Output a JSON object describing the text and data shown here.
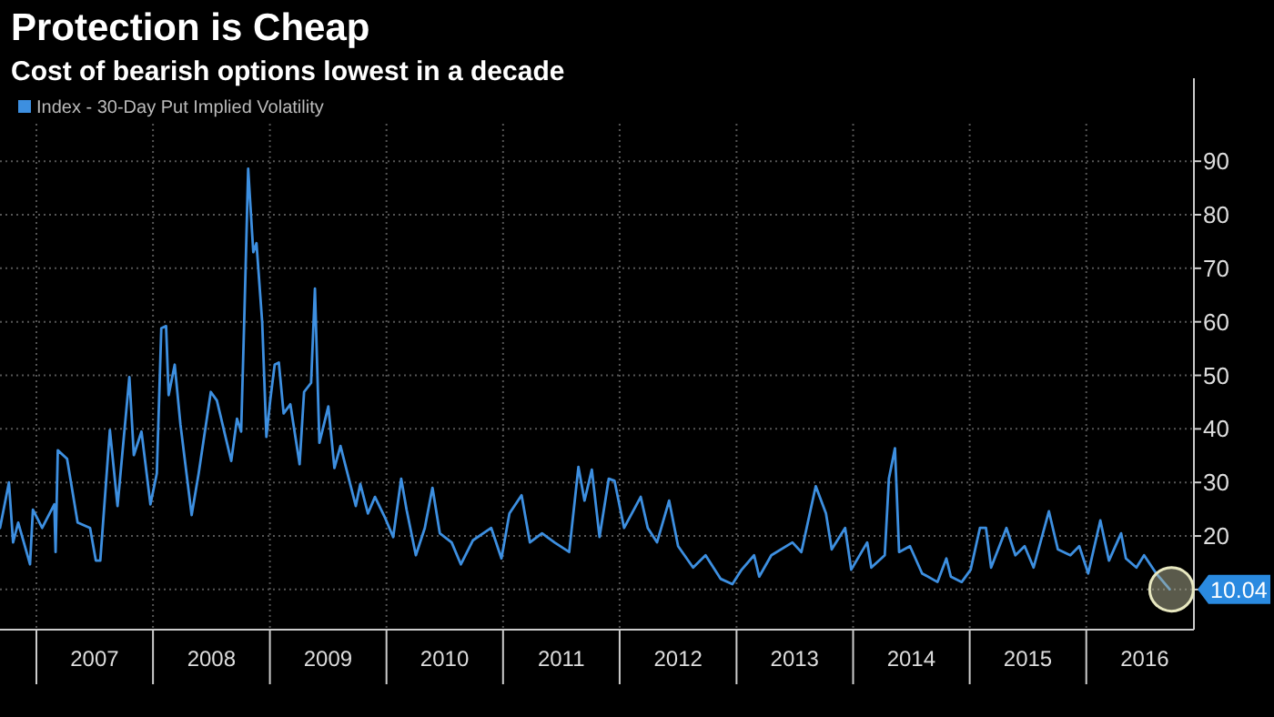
{
  "chart_data": {
    "type": "line",
    "title": "Protection is Cheap",
    "subtitle": "Cost of bearish options lowest in a decade",
    "x": [
      "2006-09-09",
      "2006-10-07",
      "2006-10-20",
      "2006-11-05",
      "2006-12-12",
      "2006-12-21",
      "2007-01-19",
      "2007-02-26",
      "2007-03-02",
      "2007-03-09",
      "2007-04-07",
      "2007-05-10",
      "2007-06-18",
      "2007-07-06",
      "2007-07-20",
      "2007-08-19",
      "2007-09-12",
      "2007-10-19",
      "2007-11-02",
      "2007-11-26",
      "2007-12-24",
      "2008-01-13",
      "2008-01-27",
      "2008-02-11",
      "2008-02-19",
      "2008-03-09",
      "2008-03-27",
      "2008-05-01",
      "2008-05-23",
      "2008-06-30",
      "2008-07-19",
      "2008-09-02",
      "2008-09-20",
      "2008-10-03",
      "2008-10-13",
      "2008-10-25",
      "2008-11-10",
      "2008-11-20",
      "2008-12-08",
      "2008-12-21",
      "2009-01-02",
      "2009-01-16",
      "2009-01-29",
      "2009-02-13",
      "2009-03-06",
      "2009-04-04",
      "2009-04-18",
      "2009-05-10",
      "2009-05-22",
      "2009-06-05",
      "2009-07-03",
      "2009-07-22",
      "2009-08-10",
      "2009-09-27",
      "2009-10-11",
      "2009-11-04",
      "2009-11-26",
      "2009-12-29",
      "2010-01-22",
      "2010-02-16",
      "2010-03-05",
      "2010-04-03",
      "2010-05-01",
      "2010-05-25",
      "2010-06-17",
      "2010-07-24",
      "2010-08-22",
      "2010-09-29",
      "2010-11-25",
      "2010-12-27",
      "2011-01-21",
      "2011-02-28",
      "2011-03-26",
      "2011-05-03",
      "2011-06-11",
      "2011-07-27",
      "2011-08-25",
      "2011-09-13",
      "2011-10-06",
      "2011-10-30",
      "2011-11-28",
      "2011-12-16",
      "2012-01-15",
      "2012-03-07",
      "2012-03-29",
      "2012-04-27",
      "2012-06-04",
      "2012-07-02",
      "2012-08-18",
      "2012-09-26",
      "2012-11-12",
      "2012-12-19",
      "2013-01-17",
      "2013-02-25",
      "2013-03-13",
      "2013-04-20",
      "2013-06-25",
      "2013-07-23",
      "2013-09-06",
      "2013-10-08",
      "2013-10-26",
      "2013-12-07",
      "2013-12-26",
      "2014-02-14",
      "2014-02-27",
      "2014-04-10",
      "2014-04-23",
      "2014-05-12",
      "2014-05-25",
      "2014-06-28",
      "2014-08-05",
      "2014-09-22",
      "2014-10-20",
      "2014-11-03",
      "2014-12-07",
      "2015-01-04",
      "2015-02-02",
      "2015-02-21",
      "2015-03-09",
      "2015-04-26",
      "2015-05-24",
      "2015-06-22",
      "2015-07-20",
      "2015-09-06",
      "2015-10-04",
      "2015-11-12",
      "2015-12-10",
      "2016-01-07",
      "2016-02-14",
      "2016-03-12",
      "2016-04-19",
      "2016-05-04",
      "2016-06-06",
      "2016-06-30",
      "2016-08-07",
      "2016-09-18"
    ],
    "series": [
      {
        "name": "Index - 30-Day Put Implied Volatility",
        "color": "#3d8fe0",
        "values": [
          21.5,
          30,
          18.8,
          22.5,
          14.7,
          24.9,
          21.5,
          25.9,
          17,
          36,
          34.4,
          22.5,
          21.5,
          15.4,
          15.4,
          39.8,
          25.6,
          49.7,
          35.1,
          39.5,
          25.9,
          31.7,
          58.8,
          59.2,
          46.3,
          52,
          40.8,
          23.9,
          31.7,
          46.9,
          45.3,
          34,
          41.9,
          39.5,
          61,
          88.6,
          73,
          74.7,
          59.8,
          38.5,
          45.3,
          52,
          52.4,
          42.9,
          44.6,
          33.4,
          46.9,
          48.6,
          66.2,
          37.4,
          44.2,
          32.7,
          36.8,
          25.6,
          29.7,
          24.2,
          27.3,
          23.2,
          19.8,
          30.7,
          24.9,
          16.4,
          21.5,
          29,
          20.5,
          18.8,
          14.7,
          19.2,
          21.5,
          15.8,
          24.2,
          27.6,
          18.8,
          20.5,
          18.8,
          17,
          32.9,
          26.6,
          32.4,
          19.8,
          30.7,
          30.3,
          21.5,
          27.3,
          21.5,
          18.8,
          26.6,
          18.1,
          14.1,
          16.4,
          12,
          11,
          13.7,
          16.4,
          12.4,
          16.4,
          18.8,
          17,
          29.3,
          24.2,
          17.5,
          21.5,
          13.7,
          18.8,
          14.1,
          16.4,
          30.7,
          36.4,
          17,
          18.1,
          13,
          11.4,
          15.8,
          12.4,
          11.4,
          13.7,
          21.5,
          21.5,
          14.1,
          21.5,
          16.4,
          18.1,
          14.1,
          24.6,
          17.5,
          16.4,
          18.1,
          13,
          22.9,
          15.4,
          20.5,
          15.8,
          14.1,
          16.4,
          13,
          10.04
        ]
      }
    ],
    "xlim": [
      "2006-09-09",
      "2016-12-03"
    ],
    "xticks": [
      {
        "value": "2007-01-01",
        "label": null
      },
      {
        "value": "2007-07-02",
        "label": "2007"
      },
      {
        "value": "2008-01-01",
        "label": null
      },
      {
        "value": "2008-07-02",
        "label": "2008"
      },
      {
        "value": "2009-01-01",
        "label": null
      },
      {
        "value": "2009-07-02",
        "label": "2009"
      },
      {
        "value": "2010-01-01",
        "label": null
      },
      {
        "value": "2010-07-02",
        "label": "2010"
      },
      {
        "value": "2011-01-01",
        "label": null
      },
      {
        "value": "2011-07-02",
        "label": "2011"
      },
      {
        "value": "2012-01-01",
        "label": null
      },
      {
        "value": "2012-07-02",
        "label": "2012"
      },
      {
        "value": "2013-01-01",
        "label": null
      },
      {
        "value": "2013-07-02",
        "label": "2013"
      },
      {
        "value": "2014-01-01",
        "label": null
      },
      {
        "value": "2014-07-02",
        "label": "2014"
      },
      {
        "value": "2015-01-01",
        "label": null
      },
      {
        "value": "2015-07-02",
        "label": "2015"
      },
      {
        "value": "2016-01-01",
        "label": null
      },
      {
        "value": "2016-07-02",
        "label": "2016"
      }
    ],
    "ylim": [
      2.5,
      97
    ],
    "yticks": [
      {
        "value": 10,
        "label": null
      },
      20,
      30,
      40,
      50,
      60,
      70,
      80,
      90
    ],
    "grid": true,
    "legend": "top left",
    "marker": "none",
    "line_style": "solid",
    "annotations": [
      {
        "text": "10.04",
        "x": "2016-09-18",
        "y": 10.04
      }
    ]
  }
}
